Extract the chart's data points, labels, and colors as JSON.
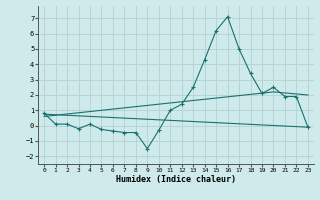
{
  "title": "",
  "xlabel": "Humidex (Indice chaleur)",
  "background_color": "#ceeaea",
  "grid_color": "#b8d4d4",
  "line_color": "#1a7070",
  "xlim": [
    -0.5,
    23.5
  ],
  "ylim": [
    -2.5,
    7.8
  ],
  "yticks": [
    -2,
    -1,
    0,
    1,
    2,
    3,
    4,
    5,
    6,
    7
  ],
  "xticks": [
    0,
    1,
    2,
    3,
    4,
    5,
    6,
    7,
    8,
    9,
    10,
    11,
    12,
    13,
    14,
    15,
    16,
    17,
    18,
    19,
    20,
    21,
    22,
    23
  ],
  "series1_x": [
    0,
    1,
    2,
    3,
    4,
    5,
    6,
    7,
    8,
    9,
    10,
    11,
    12,
    13,
    14,
    15,
    16,
    17,
    18,
    19,
    20,
    21,
    22,
    23
  ],
  "series1_y": [
    0.8,
    0.1,
    0.1,
    -0.2,
    0.1,
    -0.25,
    -0.35,
    -0.45,
    -0.45,
    -1.5,
    -0.3,
    1.0,
    1.4,
    2.5,
    4.3,
    6.2,
    7.1,
    5.0,
    3.4,
    2.1,
    2.5,
    1.9,
    1.9,
    -0.1
  ],
  "series2_x": [
    0,
    23
  ],
  "series2_y": [
    0.75,
    -0.1
  ],
  "series3_x": [
    0,
    20,
    23
  ],
  "series3_y": [
    0.6,
    2.2,
    2.0
  ],
  "marker": "+",
  "font_family": "monospace"
}
